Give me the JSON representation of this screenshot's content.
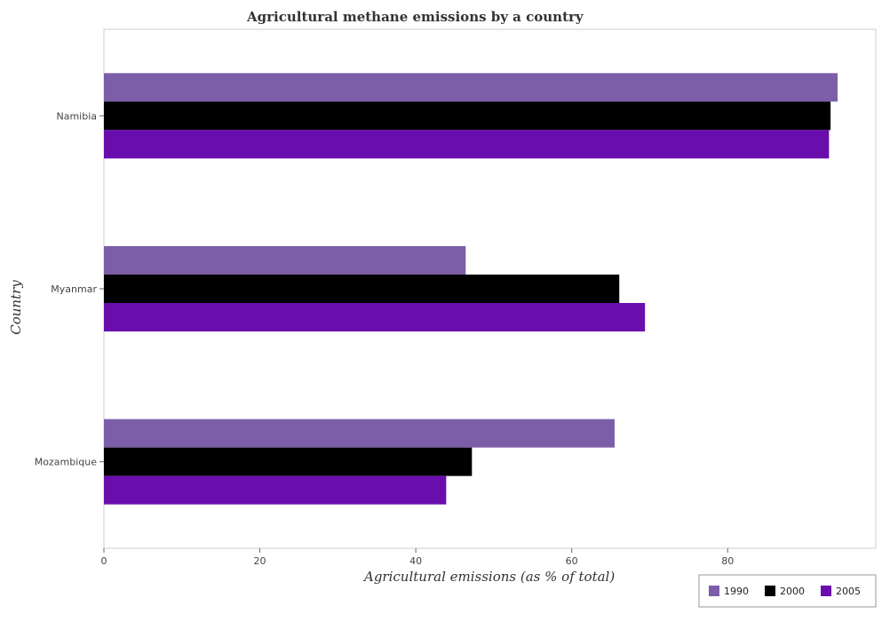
{
  "chart_data": {
    "type": "bar",
    "orientation": "horizontal",
    "title": "Agricultural methane emissions by a country",
    "xlabel": "Agricultural emissions (as % of total)",
    "ylabel": "Country",
    "xlim": [
      0,
      99
    ],
    "xticks": [
      0,
      20,
      40,
      60,
      80
    ],
    "grid": false,
    "legend_position": "bottom-right",
    "categories": [
      "Mozambique",
      "Myanmar",
      "Namibia"
    ],
    "series": [
      {
        "name": "1990",
        "color": "#7b5ea7",
        "values": [
          65.5,
          46.4,
          94.1
        ]
      },
      {
        "name": "2000",
        "color": "#000000",
        "values": [
          47.2,
          66.1,
          93.2
        ]
      },
      {
        "name": "2005",
        "color": "#6a0dad",
        "values": [
          43.9,
          69.4,
          93.0
        ]
      }
    ]
  }
}
